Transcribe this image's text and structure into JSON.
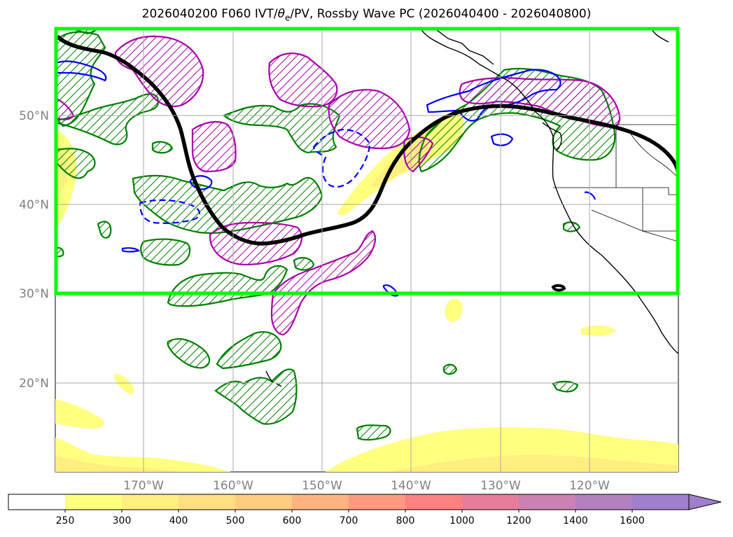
{
  "title": {
    "prefix": "2026040200 F060 IVT/",
    "theta": "θ",
    "theta_sub": "e",
    "suffix": "/PV, Rossby Wave PC (2026040400 - 2026040800)"
  },
  "axes": {
    "lon_labels": [
      "170°W",
      "160°W",
      "150°W",
      "140°W",
      "130°W",
      "120°W"
    ],
    "lat_labels": [
      "50°N",
      "40°N",
      "30°N",
      "20°N"
    ]
  },
  "colorbar": {
    "levels": [
      "250",
      "300",
      "400",
      "500",
      "600",
      "700",
      "800",
      "1000",
      "1200",
      "1400",
      "1600"
    ],
    "colors": [
      "#ffffff",
      "#ffff80",
      "#ffee80",
      "#ffdd80",
      "#ffcc80",
      "#ffb380",
      "#ff9980",
      "#ff8080",
      "#e67e9b",
      "#cc80b3",
      "#b380c2",
      "#9f80cc"
    ]
  },
  "colors": {
    "box": "#00ff00",
    "wave_axis": "#000000",
    "pv_contour": "#aa00aa",
    "theta_contour": "#008000",
    "ivt_negative": "#0000ff",
    "coast": "#000000"
  }
}
